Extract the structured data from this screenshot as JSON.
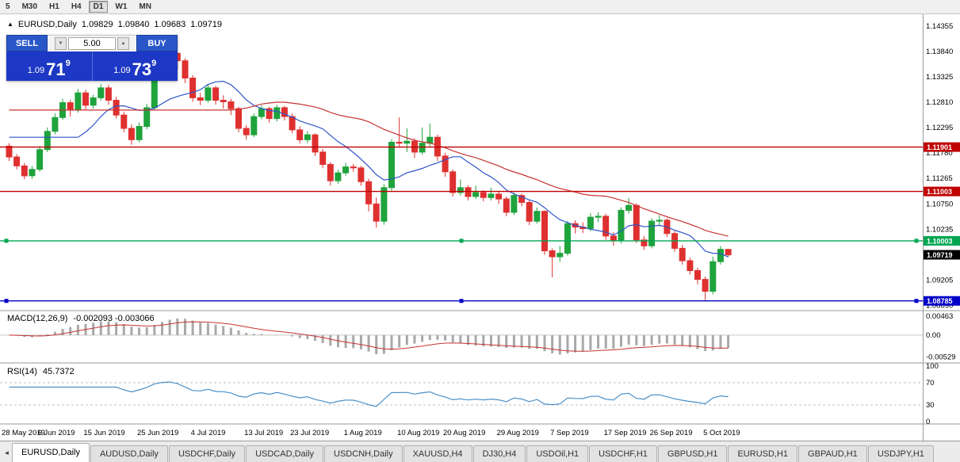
{
  "toolbar": {
    "timeframes": [
      {
        "label": "5"
      },
      {
        "label": "M30"
      },
      {
        "label": "H1"
      },
      {
        "label": "H4"
      },
      {
        "label": "D1"
      },
      {
        "label": "W1"
      },
      {
        "label": "MN"
      }
    ],
    "active": "D1"
  },
  "legend": {
    "marker": "▲",
    "symbol": "EURUSD,Daily",
    "open": "1.09829",
    "high": "1.09840",
    "low": "1.09683",
    "close": "1.09719"
  },
  "macd_legend": {
    "name": "MACD(12,26,9)",
    "values": "-0.002093 -0.003066"
  },
  "rsi_legend": {
    "name": "RSI(14)",
    "value": "45.7372"
  },
  "trade_panel": {
    "sell_label": "SELL",
    "buy_label": "BUY",
    "volume": "5.00",
    "down_icon": "▼",
    "up_icon": "▲",
    "sell_price": {
      "prefix": "1.09",
      "main": "71",
      "sup": "9"
    },
    "buy_price": {
      "prefix": "1.09",
      "main": "73",
      "sup": "9"
    }
  },
  "chart_data": {
    "type": "candlestick",
    "symbol": "EURUSD",
    "timeframe": "Daily",
    "y_axis_labels": [
      "1.14355",
      "1.13840",
      "1.13325",
      "1.12810",
      "1.12295",
      "1.11780",
      "1.11265",
      "1.10750",
      "1.10235",
      "1.09720",
      "1.09205",
      "1.08690"
    ],
    "x_axis_labels": [
      "28 May 2019",
      "6 Jun 2019",
      "15 Jun 2019",
      "25 Jun 2019",
      "4 Jul 2019",
      "13 Jul 2019",
      "23 Jul 2019",
      "1 Aug 2019",
      "10 Aug 2019",
      "20 Aug 2019",
      "29 Aug 2019",
      "7 Sep 2019",
      "17 Sep 2019",
      "26 Sep 2019",
      "5 Oct 2019"
    ],
    "levels": [
      {
        "price": 1.11901,
        "label": "1.11901",
        "color": "#c00000",
        "handles": false
      },
      {
        "price": 1.11003,
        "label": "1.11003",
        "color": "#c00000",
        "handles": false
      },
      {
        "price": 1.10003,
        "label": "1.10003",
        "color": "#00a651",
        "handles": true
      },
      {
        "price": 1.08785,
        "label": "1.08785",
        "color": "#0000c8",
        "handles": true
      }
    ],
    "current_price": {
      "value": 1.09719,
      "label": "1.09719",
      "color": "#000000"
    },
    "macd_axis": [
      {
        "label": "0.00463",
        "value": 0.00463
      },
      {
        "label": "0.00",
        "value": 0
      },
      {
        "label": "-0.00529",
        "value": -0.00529
      }
    ],
    "rsi_axis": [
      {
        "label": "100",
        "value": 100
      },
      {
        "label": "70",
        "value": 70
      },
      {
        "label": "30",
        "value": 30
      },
      {
        "label": "0",
        "value": 0
      }
    ],
    "rsi_levels": [
      70,
      30
    ],
    "ma_periods": {
      "fast": 10,
      "slow": 30
    },
    "colors": {
      "bull": "#1fa33c",
      "bear": "#df3030",
      "ma_fast": "#2f55c8",
      "ma_slow": "#c83232",
      "macd_hist": "#a8a8a8",
      "macd_signal": "#c83232",
      "rsi": "#4a8fc7"
    },
    "candles": [
      [
        1.1192,
        1.1198,
        1.1162,
        1.117
      ],
      [
        1.117,
        1.1176,
        1.1145,
        1.1152
      ],
      [
        1.1152,
        1.1158,
        1.1125,
        1.1132
      ],
      [
        1.1132,
        1.1152,
        1.1126,
        1.1145
      ],
      [
        1.1145,
        1.1192,
        1.114,
        1.1185
      ],
      [
        1.1185,
        1.123,
        1.118,
        1.1222
      ],
      [
        1.1222,
        1.1258,
        1.1216,
        1.125
      ],
      [
        1.125,
        1.1288,
        1.1245,
        1.128
      ],
      [
        1.128,
        1.1286,
        1.1252,
        1.1265
      ],
      [
        1.1265,
        1.1308,
        1.126,
        1.13
      ],
      [
        1.13,
        1.1306,
        1.1266,
        1.1275
      ],
      [
        1.1275,
        1.1296,
        1.1268,
        1.129
      ],
      [
        1.129,
        1.1318,
        1.1284,
        1.131
      ],
      [
        1.131,
        1.1316,
        1.1276,
        1.1285
      ],
      [
        1.1285,
        1.1292,
        1.1248,
        1.1255
      ],
      [
        1.1255,
        1.1262,
        1.122,
        1.1228
      ],
      [
        1.1228,
        1.1236,
        1.1195,
        1.1205
      ],
      [
        1.1205,
        1.124,
        1.12,
        1.1232
      ],
      [
        1.1232,
        1.1278,
        1.1226,
        1.127
      ],
      [
        1.127,
        1.1345,
        1.1264,
        1.1338
      ],
      [
        1.1338,
        1.1376,
        1.1332,
        1.137
      ],
      [
        1.137,
        1.1384,
        1.1358,
        1.138
      ],
      [
        1.138,
        1.1382,
        1.1348,
        1.1365
      ],
      [
        1.1365,
        1.137,
        1.132,
        1.133
      ],
      [
        1.133,
        1.1336,
        1.1282,
        1.129
      ],
      [
        1.129,
        1.13,
        1.1275,
        1.1285
      ],
      [
        1.1285,
        1.1318,
        1.128,
        1.131
      ],
      [
        1.131,
        1.1314,
        1.1276,
        1.1285
      ],
      [
        1.1285,
        1.1295,
        1.1268,
        1.1282
      ],
      [
        1.1282,
        1.1288,
        1.1255,
        1.1268
      ],
      [
        1.1268,
        1.1272,
        1.122,
        1.1228
      ],
      [
        1.1228,
        1.1235,
        1.1205,
        1.1215
      ],
      [
        1.1215,
        1.1258,
        1.121,
        1.1252
      ],
      [
        1.1252,
        1.1275,
        1.1246,
        1.1268
      ],
      [
        1.1268,
        1.1272,
        1.124,
        1.1248
      ],
      [
        1.1248,
        1.1276,
        1.1242,
        1.127
      ],
      [
        1.127,
        1.1274,
        1.1244,
        1.1252
      ],
      [
        1.1252,
        1.1258,
        1.1218,
        1.1225
      ],
      [
        1.1225,
        1.1232,
        1.1198,
        1.1205
      ],
      [
        1.1205,
        1.1222,
        1.1198,
        1.1215
      ],
      [
        1.1215,
        1.1218,
        1.1172,
        1.118
      ],
      [
        1.118,
        1.1186,
        1.1148,
        1.1155
      ],
      [
        1.1155,
        1.116,
        1.1112,
        1.1122
      ],
      [
        1.1122,
        1.1144,
        1.1116,
        1.1138
      ],
      [
        1.1138,
        1.1158,
        1.1132,
        1.115
      ],
      [
        1.115,
        1.1156,
        1.114,
        1.1148
      ],
      [
        1.1148,
        1.1152,
        1.1112,
        1.112
      ],
      [
        1.112,
        1.1126,
        1.106,
        1.1075
      ],
      [
        1.1075,
        1.1088,
        1.1027,
        1.104
      ],
      [
        1.104,
        1.1115,
        1.1033,
        1.1108
      ],
      [
        1.1108,
        1.1206,
        1.1102,
        1.12
      ],
      [
        1.12,
        1.125,
        1.119,
        1.1198
      ],
      [
        1.1198,
        1.1228,
        1.118,
        1.1202
      ],
      [
        1.1202,
        1.1208,
        1.1168,
        1.118
      ],
      [
        1.118,
        1.123,
        1.1175,
        1.1198
      ],
      [
        1.1198,
        1.1238,
        1.119,
        1.121
      ],
      [
        1.121,
        1.1215,
        1.1162,
        1.1172
      ],
      [
        1.1172,
        1.1178,
        1.113,
        1.114
      ],
      [
        1.114,
        1.1145,
        1.109,
        1.1098
      ],
      [
        1.1098,
        1.1125,
        1.1092,
        1.1108
      ],
      [
        1.1108,
        1.1113,
        1.1082,
        1.109
      ],
      [
        1.109,
        1.1112,
        1.1085,
        1.1098
      ],
      [
        1.1098,
        1.1103,
        1.108,
        1.1088
      ],
      [
        1.1088,
        1.1108,
        1.1082,
        1.1095
      ],
      [
        1.1095,
        1.11,
        1.1075,
        1.1085
      ],
      [
        1.1085,
        1.109,
        1.105,
        1.1058
      ],
      [
        1.1058,
        1.1098,
        1.1052,
        1.1092
      ],
      [
        1.1092,
        1.1096,
        1.107,
        1.1078
      ],
      [
        1.1078,
        1.1082,
        1.1032,
        1.104
      ],
      [
        1.104,
        1.1068,
        1.1035,
        1.106
      ],
      [
        1.106,
        1.1062,
        1.0972,
        1.098
      ],
      [
        1.098,
        1.0985,
        1.0926,
        1.0968
      ],
      [
        1.0968,
        1.099,
        1.0958,
        1.0975
      ],
      [
        1.0975,
        1.104,
        1.097,
        1.1035
      ],
      [
        1.1035,
        1.1042,
        1.1015,
        1.1028
      ],
      [
        1.1028,
        1.1038,
        1.1016,
        1.1025
      ],
      [
        1.1025,
        1.1056,
        1.102,
        1.1048
      ],
      [
        1.1048,
        1.1058,
        1.1038,
        1.105
      ],
      [
        1.105,
        1.1055,
        1.1002,
        1.101
      ],
      [
        1.101,
        1.1018,
        1.099,
        1.1
      ],
      [
        1.1,
        1.1068,
        1.0995,
        1.1062
      ],
      [
        1.1062,
        1.1087,
        1.1055,
        1.1072
      ],
      [
        1.1072,
        1.1076,
        1.0996,
        1.1002
      ],
      [
        1.1002,
        1.101,
        1.0982,
        1.099
      ],
      [
        1.099,
        1.1046,
        1.0985,
        1.104
      ],
      [
        1.104,
        1.1052,
        1.103,
        1.1042
      ],
      [
        1.1042,
        1.1046,
        1.1008,
        1.1015
      ],
      [
        1.1015,
        1.102,
        1.0978,
        1.0985
      ],
      [
        1.0985,
        1.0992,
        1.0952,
        1.096
      ],
      [
        1.096,
        1.0966,
        1.0932,
        1.094
      ],
      [
        1.094,
        1.0946,
        1.0912,
        1.0922
      ],
      [
        1.0922,
        1.0928,
        1.0879,
        1.0898
      ],
      [
        1.0898,
        1.0968,
        1.0892,
        1.0958
      ],
      [
        1.0958,
        1.099,
        1.0952,
        1.0983
      ],
      [
        1.09829,
        1.0984,
        1.09683,
        1.09719
      ]
    ]
  },
  "bottom_tabs": {
    "scroll_left_icon": "◄",
    "tabs": [
      {
        "label": "EURUSD,Daily",
        "active": true
      },
      {
        "label": "AUDUSD,Daily"
      },
      {
        "label": "USDCHF,Daily"
      },
      {
        "label": "USDCAD,Daily"
      },
      {
        "label": "USDCNH,Daily"
      },
      {
        "label": "XAUUSD,H4"
      },
      {
        "label": "DJ30,H4"
      },
      {
        "label": "USDOil,H1"
      },
      {
        "label": "USDCHF,H1"
      },
      {
        "label": "GBPUSD,H1"
      },
      {
        "label": "EURUSD,H1"
      },
      {
        "label": "GBPAUD,H1"
      },
      {
        "label": "USDJPY,H1"
      }
    ]
  }
}
